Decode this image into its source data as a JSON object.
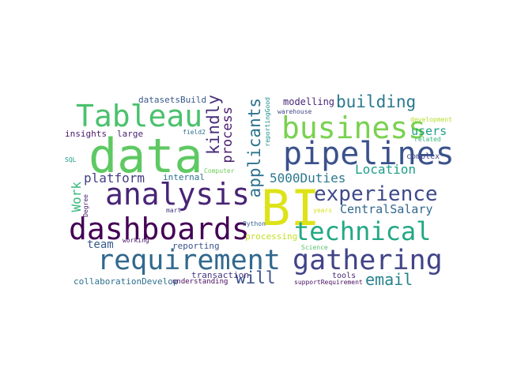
{
  "words": [
    {
      "text": "data",
      "color": "#5ec962"
    },
    {
      "text": "BI",
      "color": "#dde318"
    },
    {
      "text": "business",
      "color": "#7ad151"
    },
    {
      "text": "pipelines",
      "color": "#3b528b"
    },
    {
      "text": "Tableau",
      "color": "#4ac16d"
    },
    {
      "text": "analysis",
      "color": "#482576"
    },
    {
      "text": "dashboards",
      "color": "#440154"
    },
    {
      "text": "requirement",
      "color": "#31688e"
    },
    {
      "text": "gathering",
      "color": "#414487"
    },
    {
      "text": "technical",
      "color": "#22a884"
    },
    {
      "text": "experience",
      "color": "#3e4a89"
    },
    {
      "text": "building",
      "color": "#2a788e"
    },
    {
      "text": "kindly",
      "color": "#472d7b"
    },
    {
      "text": "applicants",
      "color": "#2c728e"
    },
    {
      "text": "process",
      "color": "#481a6c"
    },
    {
      "text": "Work",
      "color": "#35b779"
    },
    {
      "text": "platform",
      "color": "#433e85"
    },
    {
      "text": "email",
      "color": "#26828e"
    },
    {
      "text": "will",
      "color": "#3b528b"
    },
    {
      "text": "Location",
      "color": "#1f9e89"
    },
    {
      "text": "5000Duties",
      "color": "#2a788e"
    },
    {
      "text": "CentralSalary",
      "color": "#31688e"
    },
    {
      "text": "users",
      "color": "#1fa187"
    },
    {
      "text": "team",
      "color": "#375b8d"
    },
    {
      "text": "modelling",
      "color": "#482677"
    },
    {
      "text": "datasetsBuild",
      "color": "#38598c"
    },
    {
      "text": "insights",
      "color": "#481668"
    },
    {
      "text": "large",
      "color": "#481f70"
    },
    {
      "text": "internal",
      "color": "#2c728e"
    },
    {
      "text": "reporting",
      "color": "#3b528b"
    },
    {
      "text": "transaction",
      "color": "#453781"
    },
    {
      "text": "collaborationDevelop",
      "color": "#2d708e"
    },
    {
      "text": "understanding",
      "color": "#46085c"
    },
    {
      "text": "processing",
      "color": "#c2df23"
    },
    {
      "text": "tools",
      "color": "#482878"
    },
    {
      "text": "supportRequirement",
      "color": "#471063"
    },
    {
      "text": "complex",
      "color": "#3f4788"
    },
    {
      "text": "field2",
      "color": "#2e6d8e"
    },
    {
      "text": "warehouse",
      "color": "#3f4889"
    },
    {
      "text": "development",
      "color": "#b5de2b"
    },
    {
      "text": "related",
      "color": "#35b779"
    },
    {
      "text": "Computer",
      "color": "#6ccd5a"
    },
    {
      "text": "Science",
      "color": "#54c568"
    },
    {
      "text": "years",
      "color": "#d8e219"
    },
    {
      "text": "Python",
      "color": "#33638d"
    },
    {
      "text": "working",
      "color": "#471365"
    },
    {
      "text": "mart",
      "color": "#443983"
    },
    {
      "text": "Degree",
      "color": "#482173"
    },
    {
      "text": "SQL",
      "color": "#1e9b8a"
    },
    {
      "text": "reportingGood",
      "color": "#21918c"
    }
  ]
}
